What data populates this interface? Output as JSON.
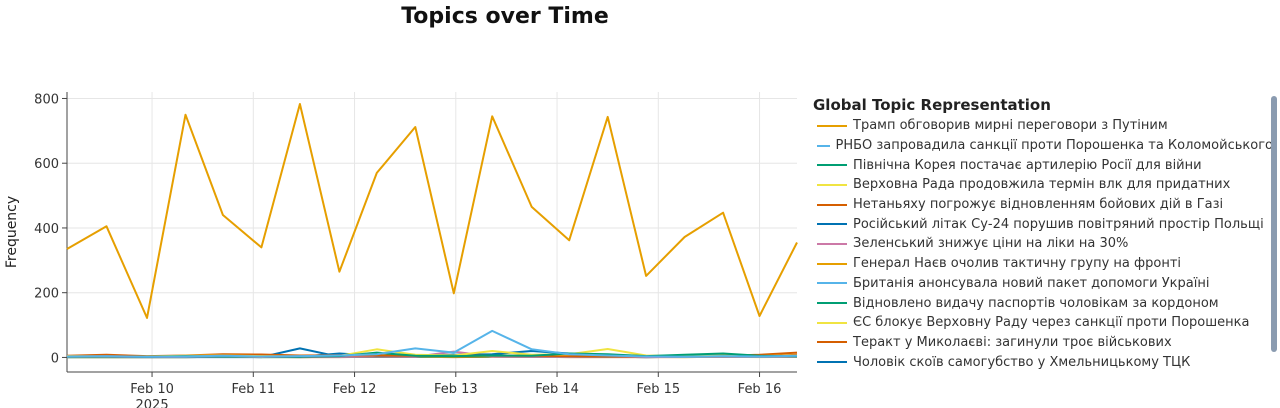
{
  "chart_data": {
    "type": "line",
    "title": "Topics over Time",
    "ylabel": "Frequency",
    "xlabel": "",
    "ylim": [
      -45,
      820
    ],
    "yticks": [
      0,
      200,
      400,
      600,
      800
    ],
    "xticks": [
      {
        "x": 10.0,
        "label": "Feb 10",
        "sublabel": "2025"
      },
      {
        "x": 11.0,
        "label": "Feb 11"
      },
      {
        "x": 12.0,
        "label": "Feb 12"
      },
      {
        "x": 13.0,
        "label": "Feb 13"
      },
      {
        "x": 14.0,
        "label": "Feb 14"
      },
      {
        "x": 15.0,
        "label": "Feb 15"
      },
      {
        "x": 16.0,
        "label": "Feb 16"
      }
    ],
    "x_domain": [
      9.16,
      16.37
    ],
    "grid": true,
    "legend_title": "Global Topic Representation",
    "legend_position": "right",
    "series": [
      {
        "name": "Трамп обговорив мирні переговори з Путіним",
        "color": "#E69F00",
        "x": [
          9.16,
          9.55,
          9.95,
          10.33,
          10.7,
          11.08,
          11.46,
          11.85,
          12.22,
          12.6,
          12.98,
          13.36,
          13.75,
          14.12,
          14.5,
          14.88,
          15.26,
          15.64,
          16.0,
          16.37
        ],
        "values": [
          335,
          405,
          122,
          750,
          440,
          340,
          783,
          265,
          570,
          712,
          198,
          745,
          465,
          362,
          743,
          252,
          372,
          447,
          128,
          355
        ]
      },
      {
        "name": "РНБО запровадила санкції проти Порошенка та Коломойського",
        "color": "#56B4E9",
        "x": [
          9.16,
          9.55,
          9.95,
          10.33,
          10.7,
          11.08,
          11.46,
          11.85,
          12.22,
          12.6,
          12.98,
          13.36,
          13.75,
          14.12,
          14.5,
          14.88,
          15.26,
          15.64,
          16.0,
          16.37
        ],
        "values": [
          3,
          4,
          2,
          3,
          5,
          3,
          4,
          6,
          10,
          28,
          15,
          82,
          25,
          10,
          6,
          3,
          2,
          4,
          3,
          5
        ]
      },
      {
        "name": "Північна Корея постачає артилерію Росії для війни",
        "color": "#009E73",
        "x": [
          9.16,
          9.55,
          9.95,
          10.33,
          10.7,
          11.08,
          11.46,
          11.85,
          12.22,
          12.6,
          12.98,
          13.36,
          13.75,
          14.12,
          14.5,
          14.88,
          15.26,
          15.64,
          16.0,
          16.37
        ],
        "values": [
          2,
          3,
          2,
          4,
          3,
          3,
          2,
          4,
          15,
          5,
          4,
          6,
          5,
          12,
          10,
          4,
          8,
          12,
          5,
          4
        ]
      },
      {
        "name": "Верховна Рада продовжила термін влк для придатних",
        "color": "#F0E442",
        "x": [
          9.16,
          9.55,
          9.95,
          10.33,
          10.7,
          11.08,
          11.46,
          11.85,
          12.22,
          12.6,
          12.98,
          13.36,
          13.75,
          14.12,
          14.5,
          14.88,
          15.26,
          15.64,
          16.0,
          16.37
        ],
        "values": [
          4,
          3,
          3,
          5,
          6,
          4,
          3,
          5,
          25,
          8,
          6,
          20,
          8,
          10,
          26,
          6,
          4,
          5,
          4,
          6
        ]
      },
      {
        "name": "Нетаньяху погрожує відновленням бойових дій в Газі",
        "color": "#D55E00",
        "x": [
          9.16,
          9.55,
          9.95,
          10.33,
          10.7,
          11.08,
          11.46,
          11.85,
          12.22,
          12.6,
          12.98,
          13.36,
          13.75,
          14.12,
          14.5,
          14.88,
          15.26,
          15.64,
          16.0,
          16.37
        ],
        "values": [
          5,
          8,
          4,
          6,
          10,
          9,
          6,
          7,
          6,
          5,
          4,
          6,
          5,
          4,
          3,
          3,
          4,
          5,
          8,
          15
        ]
      },
      {
        "name": "Російський літак Су-24 порушив повітряний простір Польщі",
        "color": "#0072B2",
        "x": [
          9.16,
          9.55,
          9.95,
          10.33,
          10.7,
          11.08,
          11.46,
          11.85,
          12.22,
          12.6,
          12.98,
          13.36,
          13.75,
          14.12,
          14.5,
          14.88,
          15.26,
          15.64,
          16.0,
          16.37
        ],
        "values": [
          3,
          3,
          2,
          3,
          4,
          3,
          2,
          12,
          5,
          6,
          8,
          10,
          20,
          12,
          5,
          3,
          4,
          5,
          4,
          5
        ]
      },
      {
        "name": "Зеленський знижує ціни на ліки на 30%",
        "color": "#CC79A7",
        "x": [
          9.16,
          9.55,
          9.95,
          10.33,
          10.7,
          11.08,
          11.46,
          11.85,
          12.22,
          12.6,
          12.98,
          13.36,
          13.75,
          14.12,
          14.5,
          14.88,
          15.26,
          15.64,
          16.0,
          16.37
        ],
        "values": [
          2,
          2,
          1,
          2,
          2,
          2,
          1,
          2,
          3,
          2,
          18,
          3,
          2,
          2,
          2,
          1,
          2,
          2,
          2,
          3
        ]
      },
      {
        "name": "Генерал Наєв очолив тактичну групу на фронті",
        "color": "#E69F00",
        "x": [
          9.16,
          9.55,
          9.95,
          10.33,
          10.7,
          11.08,
          11.46,
          11.85,
          12.22,
          12.6,
          12.98,
          13.36,
          13.75,
          14.12,
          14.5,
          14.88,
          15.26,
          15.64,
          16.0,
          16.37
        ],
        "values": [
          2,
          2,
          2,
          3,
          3,
          2,
          2,
          3,
          3,
          4,
          3,
          4,
          3,
          3,
          3,
          2,
          3,
          3,
          3,
          4
        ]
      },
      {
        "name": "Британія анонсувала новий пакет допомоги Україні",
        "color": "#56B4E9",
        "x": [
          9.16,
          9.55,
          9.95,
          10.33,
          10.7,
          11.08,
          11.46,
          11.85,
          12.22,
          12.6,
          12.98,
          13.36,
          13.75,
          14.12,
          14.5,
          14.88,
          15.26,
          15.64,
          16.0,
          16.37
        ],
        "values": [
          1,
          2,
          1,
          2,
          2,
          1,
          2,
          2,
          3,
          4,
          3,
          5,
          4,
          3,
          2,
          2,
          2,
          3,
          2,
          3
        ]
      },
      {
        "name": "Відновлено видачу паспортів чоловікам за кордоном",
        "color": "#009E73",
        "x": [
          9.16,
          9.55,
          9.95,
          10.33,
          10.7,
          11.08,
          11.46,
          11.85,
          12.22,
          12.6,
          12.98,
          13.36,
          13.75,
          14.12,
          14.5,
          14.88,
          15.26,
          15.64,
          16.0,
          16.37
        ],
        "values": [
          1,
          1,
          1,
          1,
          2,
          1,
          1,
          2,
          2,
          2,
          2,
          3,
          2,
          2,
          2,
          1,
          2,
          2,
          2,
          2
        ]
      },
      {
        "name": "ЄС блокує Верховну Раду через санкції проти Порошенка",
        "color": "#F0E442",
        "x": [
          9.16,
          9.55,
          9.95,
          10.33,
          10.7,
          11.08,
          11.46,
          11.85,
          12.22,
          12.6,
          12.98,
          13.36,
          13.75,
          14.12,
          14.5,
          14.88,
          15.26,
          15.64,
          16.0,
          16.37
        ],
        "values": [
          1,
          1,
          1,
          2,
          2,
          1,
          1,
          2,
          8,
          3,
          2,
          6,
          3,
          2,
          5,
          2,
          1,
          2,
          1,
          2
        ]
      },
      {
        "name": "Теракт у Миколаєві: загинули троє військових",
        "color": "#D55E00",
        "x": [
          9.16,
          9.55,
          9.95,
          10.33,
          10.7,
          11.08,
          11.46,
          11.85,
          12.22,
          12.6,
          12.98,
          13.36,
          13.75,
          14.12,
          14.5,
          14.88,
          15.26,
          15.64,
          16.0,
          16.37
        ],
        "values": [
          1,
          1,
          1,
          1,
          2,
          2,
          1,
          1,
          2,
          2,
          1,
          2,
          2,
          1,
          1,
          1,
          1,
          2,
          3,
          8
        ]
      },
      {
        "name": "Чоловік скоїв самогубство у Хмельницькому ТЦК",
        "color": "#0072B2",
        "x": [
          9.16,
          9.55,
          9.95,
          10.33,
          10.7,
          11.08,
          11.46,
          11.85,
          12.22,
          12.6,
          12.98,
          13.36,
          13.75,
          14.12,
          14.5,
          14.88,
          15.26,
          15.64,
          16.0,
          16.37
        ],
        "values": [
          1,
          1,
          1,
          1,
          1,
          1,
          28,
          2,
          2,
          2,
          2,
          3,
          2,
          2,
          2,
          1,
          2,
          2,
          2,
          2
        ]
      }
    ]
  }
}
